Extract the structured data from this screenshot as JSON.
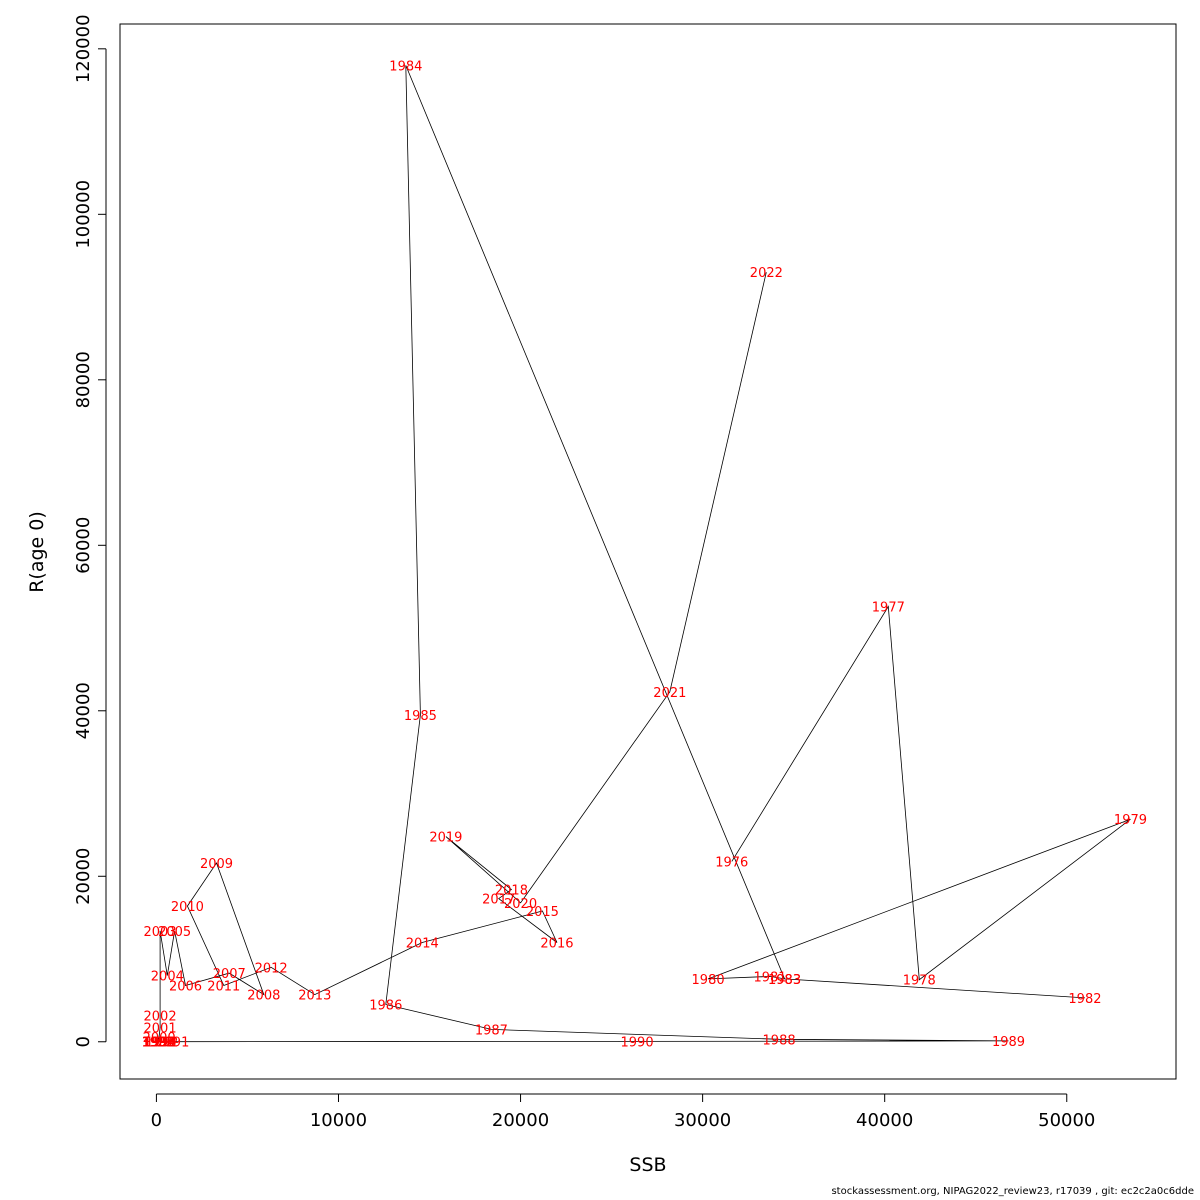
{
  "chart_data": {
    "type": "line",
    "xlabel": "SSB",
    "ylabel": "R(age 0)",
    "xlim": [
      -2000,
      56000
    ],
    "ylim": [
      -4500,
      123000
    ],
    "x_ticks": [
      0,
      10000,
      20000,
      30000,
      40000,
      50000
    ],
    "y_ticks": [
      0,
      20000,
      40000,
      60000,
      80000,
      100000,
      120000
    ],
    "grid": false,
    "line_color": "#000000",
    "label_color": "#ff0000",
    "points": [
      {
        "year": "1976",
        "ssb": 31600,
        "r": 21800
      },
      {
        "year": "1977",
        "ssb": 40200,
        "r": 52600
      },
      {
        "year": "1978",
        "ssb": 41900,
        "r": 7500
      },
      {
        "year": "1979",
        "ssb": 53500,
        "r": 26900
      },
      {
        "year": "1980",
        "ssb": 30300,
        "r": 7600
      },
      {
        "year": "1981",
        "ssb": 33700,
        "r": 7900
      },
      {
        "year": "1983",
        "ssb": 34500,
        "r": 7600
      },
      {
        "year": "1982",
        "ssb": 51000,
        "r": 5300
      },
      {
        "year": "1983",
        "ssb": 34500,
        "r": 7600
      },
      {
        "year": "1984",
        "ssb": 13700,
        "r": 118000
      },
      {
        "year": "1985",
        "ssb": 14500,
        "r": 39500
      },
      {
        "year": "1986",
        "ssb": 12600,
        "r": 4500
      },
      {
        "year": "1987",
        "ssb": 18400,
        "r": 1500
      },
      {
        "year": "1988",
        "ssb": 34200,
        "r": 300
      },
      {
        "year": "1989",
        "ssb": 46800,
        "r": 100
      },
      {
        "year": "1990",
        "ssb": 26400,
        "r": 50
      },
      {
        "year": "1991",
        "ssb": 900,
        "r": 10
      },
      {
        "year": "1992",
        "ssb": 300,
        "r": 5
      },
      {
        "year": "1993",
        "ssb": 200,
        "r": 5
      },
      {
        "year": "1994",
        "ssb": 150,
        "r": 5
      },
      {
        "year": "1995",
        "ssb": 100,
        "r": 5
      },
      {
        "year": "1996",
        "ssb": 100,
        "r": 5
      },
      {
        "year": "1997",
        "ssb": 100,
        "r": 10
      },
      {
        "year": "1998",
        "ssb": 100,
        "r": 20
      },
      {
        "year": "1999",
        "ssb": 100,
        "r": 50
      },
      {
        "year": "2000",
        "ssb": 150,
        "r": 600
      },
      {
        "year": "2001",
        "ssb": 200,
        "r": 1700
      },
      {
        "year": "2002",
        "ssb": 200,
        "r": 3200
      },
      {
        "year": "2003",
        "ssb": 200,
        "r": 13400
      },
      {
        "year": "2004",
        "ssb": 600,
        "r": 8000
      },
      {
        "year": "2005",
        "ssb": 1000,
        "r": 13400
      },
      {
        "year": "2006",
        "ssb": 1600,
        "r": 6800
      },
      {
        "year": "2007",
        "ssb": 4000,
        "r": 8300
      },
      {
        "year": "2008",
        "ssb": 5900,
        "r": 5700
      },
      {
        "year": "2009",
        "ssb": 3300,
        "r": 21600
      },
      {
        "year": "2010",
        "ssb": 1700,
        "r": 16400
      },
      {
        "year": "2011",
        "ssb": 3700,
        "r": 6800
      },
      {
        "year": "2012",
        "ssb": 6300,
        "r": 9000
      },
      {
        "year": "2013",
        "ssb": 8700,
        "r": 5700
      },
      {
        "year": "2014",
        "ssb": 14600,
        "r": 12000
      },
      {
        "year": "2015",
        "ssb": 21200,
        "r": 15800
      },
      {
        "year": "2016",
        "ssb": 22000,
        "r": 12000
      },
      {
        "year": "2017",
        "ssb": 18800,
        "r": 17300
      },
      {
        "year": "2018",
        "ssb": 19500,
        "r": 18400
      },
      {
        "year": "2019",
        "ssb": 15900,
        "r": 24800
      },
      {
        "year": "2020",
        "ssb": 20000,
        "r": 16800
      },
      {
        "year": "2021",
        "ssb": 28200,
        "r": 42300
      },
      {
        "year": "2022",
        "ssb": 33500,
        "r": 93000
      }
    ]
  },
  "footer": "stockassessment.org, NIPAG2022_review23, r17039 , git: ec2c2a0c6dde"
}
